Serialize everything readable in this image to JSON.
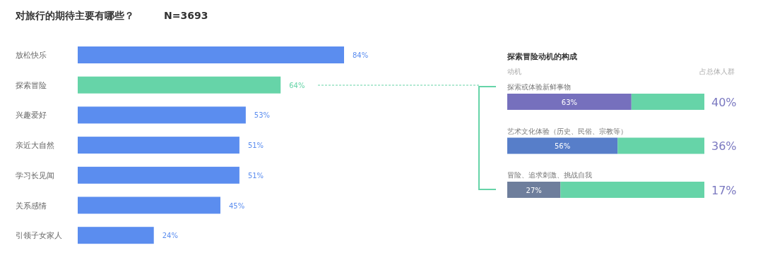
{
  "chart_data": [
    {
      "type": "bar",
      "orientation": "horizontal",
      "title": "对旅行的期待主要有哪些？",
      "subtitle": "N=3693",
      "categories": [
        "放松快乐",
        "探索冒险",
        "兴趣爱好",
        "亲近大自然",
        "学习长见闻",
        "关系感情",
        "引领子女家人"
      ],
      "values": [
        84,
        64,
        53,
        51,
        51,
        45,
        24
      ],
      "colors": [
        "#5b8def",
        "#66d4a8",
        "#5b8def",
        "#5b8def",
        "#5b8def",
        "#5b8def",
        "#5b8def"
      ],
      "value_labels": [
        "84%",
        "64%",
        "53%",
        "51%",
        "51%",
        "45%",
        "24%"
      ]
    },
    {
      "type": "bar",
      "orientation": "horizontal",
      "stacked": true,
      "title": "探索冒险动机的构成",
      "categories": [
        "探索或体验新鲜事物",
        "艺术文化体验（历史、民俗、宗教等）",
        "冒险、追求刺激、挑战自我"
      ],
      "series": [
        {
          "colors": [
            "#7670bd",
            "#577ec9",
            "#6e7e9c"
          ],
          "values": [
            63,
            56,
            27
          ],
          "value_labels": [
            "63%",
            "56%",
            "27%"
          ]
        },
        {
          "color": "#66d4a8",
          "values": [
            37,
            44,
            73
          ]
        }
      ],
      "annotations": [
        "动机",
        "占总体人群",
        "40%",
        "36%",
        "17%"
      ]
    }
  ]
}
